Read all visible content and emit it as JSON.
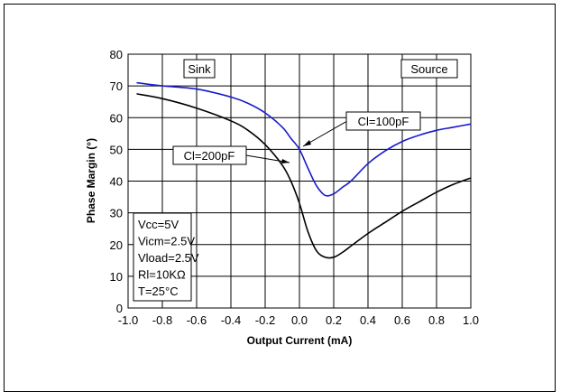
{
  "chart_data": {
    "type": "line",
    "title": "",
    "xlabel": "Output Current (mA)",
    "ylabel": "Phase Margin (°)",
    "xlim": [
      -1.0,
      1.0
    ],
    "ylim": [
      0,
      80
    ],
    "x_ticks": [
      "-1.0",
      "-0.8",
      "-0.6",
      "-0.4",
      "-0.2",
      "0.0",
      "0.2",
      "0.4",
      "0.6",
      "0.8",
      "1.0"
    ],
    "y_ticks": [
      "0",
      "10",
      "20",
      "30",
      "40",
      "50",
      "60",
      "70",
      "80"
    ],
    "grid": true,
    "series": [
      {
        "name": "Cl=100pF",
        "color": "#1a1acc",
        "x": [
          -0.95,
          -0.8,
          -0.6,
          -0.4,
          -0.3,
          -0.2,
          -0.1,
          -0.05,
          0.0,
          0.05,
          0.1,
          0.15,
          0.2,
          0.25,
          0.3,
          0.4,
          0.5,
          0.6,
          0.7,
          0.8,
          0.9,
          1.0
        ],
        "y": [
          71,
          70,
          69,
          66.5,
          64.5,
          61.5,
          57,
          53.5,
          50,
          44,
          38.5,
          35.5,
          36,
          38,
          40,
          45.5,
          49.5,
          52.5,
          54.5,
          56,
          57,
          58
        ]
      },
      {
        "name": "Cl=200pF",
        "color": "#000000",
        "x": [
          -0.95,
          -0.8,
          -0.6,
          -0.4,
          -0.3,
          -0.2,
          -0.1,
          -0.05,
          0.0,
          0.05,
          0.1,
          0.15,
          0.2,
          0.25,
          0.3,
          0.4,
          0.5,
          0.6,
          0.7,
          0.8,
          0.9,
          1.0
        ],
        "y": [
          67.5,
          66,
          63,
          59,
          56,
          51.5,
          45,
          40,
          33,
          24,
          18,
          16,
          16,
          17.5,
          19.5,
          23.5,
          27,
          30.5,
          33.5,
          36.5,
          39,
          41
        ]
      }
    ],
    "annotations": {
      "sink": "Sink",
      "source": "Source",
      "cl100": "Cl=100pF",
      "cl200": "Cl=200pF",
      "conditions": [
        "Vcc=5V",
        "Vicm=2.5V",
        "Vload=2.5V",
        "Rl=10KΩ",
        "T=25°C"
      ]
    }
  }
}
